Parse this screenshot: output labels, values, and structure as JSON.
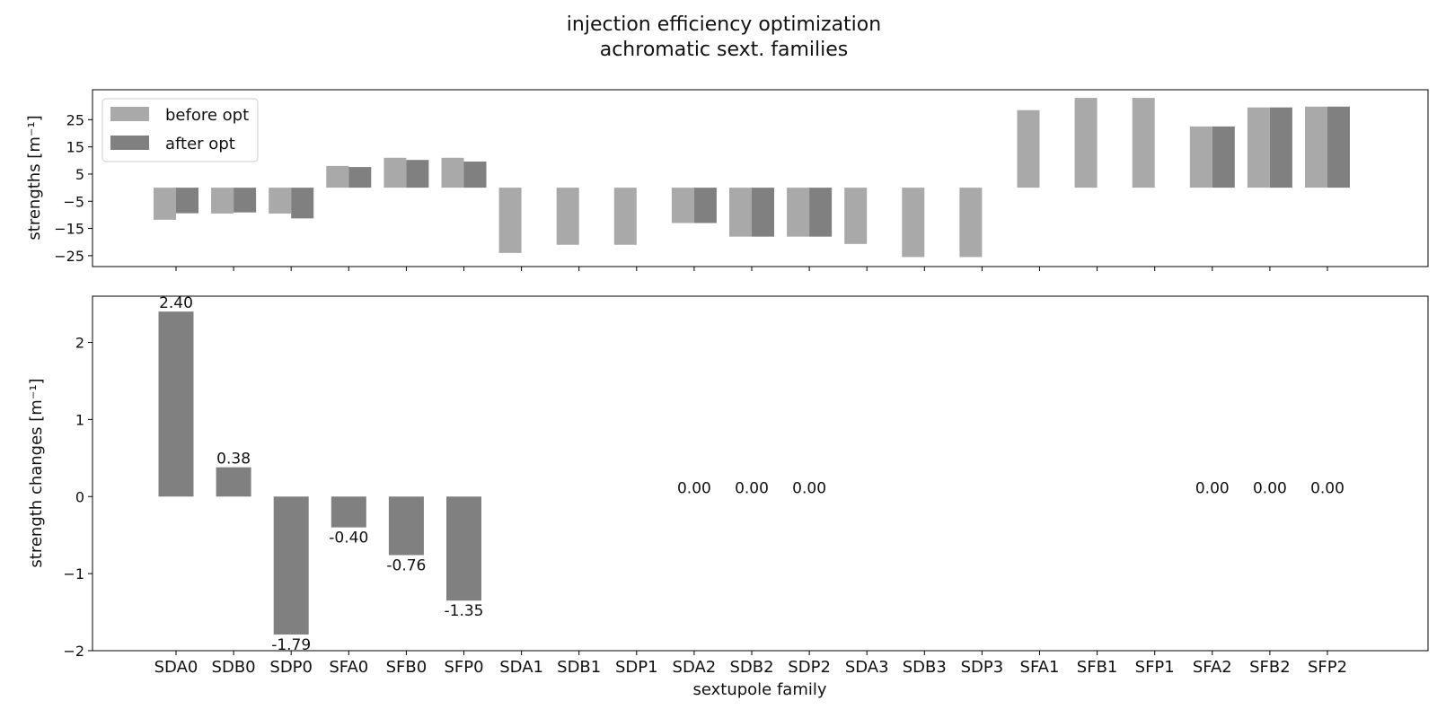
{
  "chart_data": [
    {
      "type": "bar",
      "title": "injection efficiency optimization",
      "subtitle": "achromatic sext. families",
      "ylabel": "strengths [m⁻¹]",
      "xlabel": "",
      "categories": [
        "SDA0",
        "SDB0",
        "SDP0",
        "SFA0",
        "SFB0",
        "SFP0",
        "SDA1",
        "SDB1",
        "SDP1",
        "SDA2",
        "SDB2",
        "SDP2",
        "SDA3",
        "SDB3",
        "SDP3",
        "SFA1",
        "SFB1",
        "SFP1",
        "SFA2",
        "SFB2",
        "SFP2"
      ],
      "series": [
        {
          "name": "before opt",
          "color": "#a9a9a9",
          "values": [
            -11.8,
            -9.5,
            -9.5,
            8.0,
            11.0,
            11.0,
            -24.0,
            -21.0,
            -21.0,
            -13.0,
            -18.0,
            -18.0,
            -20.7,
            -25.5,
            -25.5,
            28.5,
            33.0,
            33.0,
            22.5,
            29.5,
            29.8
          ]
        },
        {
          "name": "after opt",
          "color": "#808080",
          "values": [
            -9.4,
            -9.1,
            -11.3,
            7.6,
            10.2,
            9.6,
            null,
            null,
            null,
            -13.0,
            -18.0,
            -18.0,
            null,
            null,
            null,
            null,
            null,
            null,
            22.5,
            29.5,
            29.8
          ]
        }
      ],
      "yticks": [
        -25,
        -15,
        -5,
        5,
        15,
        25
      ],
      "ylim": [
        -29,
        36
      ],
      "legend": "top-left",
      "grid": false
    },
    {
      "type": "bar",
      "title": "",
      "ylabel": "strength changes [m⁻¹]",
      "xlabel": "sextupole family",
      "categories": [
        "SDA0",
        "SDB0",
        "SDP0",
        "SFA0",
        "SFB0",
        "SFP0",
        "SDA1",
        "SDB1",
        "SDP1",
        "SDA2",
        "SDB2",
        "SDP2",
        "SDA3",
        "SDB3",
        "SDP3",
        "SFA1",
        "SFB1",
        "SFP1",
        "SFA2",
        "SFB2",
        "SFP2"
      ],
      "series": [
        {
          "color": "#808080",
          "values": [
            2.4,
            0.38,
            -1.79,
            -0.4,
            -0.76,
            -1.35,
            null,
            null,
            null,
            0.0,
            0.0,
            0.0,
            null,
            null,
            null,
            null,
            null,
            null,
            0.0,
            0.0,
            0.0
          ],
          "data_labels": [
            "2.40",
            "0.38",
            "-1.79",
            "-0.40",
            "-0.76",
            "-1.35",
            "",
            "",
            "",
            "0.00",
            "0.00",
            "0.00",
            "",
            "",
            "",
            "",
            "",
            "",
            "0.00",
            "0.00",
            "0.00"
          ]
        }
      ],
      "yticks": [
        -2,
        -1,
        0,
        1,
        2
      ],
      "ylim": [
        -2,
        2.6
      ],
      "grid": false
    }
  ]
}
